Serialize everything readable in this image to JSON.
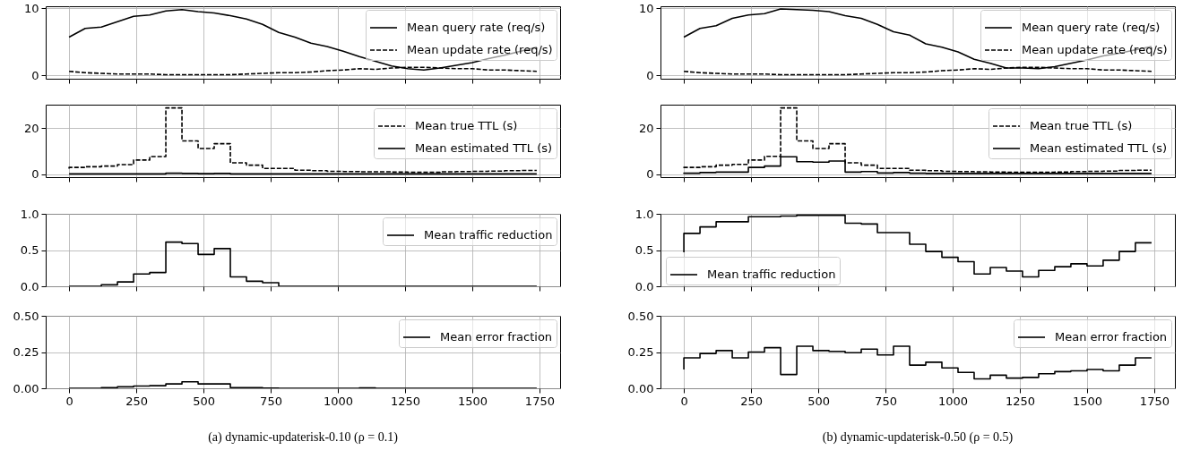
{
  "chart_data": [
    {
      "type": "line",
      "x": [
        0,
        60,
        120,
        180,
        240,
        300,
        360,
        420,
        480,
        540,
        600,
        660,
        720,
        780,
        840,
        900,
        960,
        1020,
        1080,
        1140,
        1200,
        1260,
        1320,
        1380,
        1440,
        1500,
        1560,
        1620,
        1680,
        1740
      ],
      "xlim": [
        -87,
        1827
      ],
      "xticks": [
        0,
        250,
        500,
        750,
        1000,
        1250,
        1500,
        1750
      ],
      "ylim": [
        -0.5,
        10.3
      ],
      "yticks": [
        0,
        10
      ],
      "grid": true,
      "legend": "top right",
      "tick_labels": "y",
      "series": [
        {
          "name": "Mean query rate (req/s)",
          "color": "#000000",
          "line_style": "solid",
          "values": [
            5.7,
            7.0,
            7.2,
            8.0,
            8.8,
            9.0,
            9.6,
            9.8,
            9.5,
            9.3,
            8.9,
            8.4,
            7.6,
            6.4,
            5.7,
            4.8,
            4.3,
            3.6,
            2.8,
            2.1,
            1.4,
            1.0,
            0.8,
            1.1,
            1.5,
            1.9,
            2.5,
            3.0,
            3.6,
            4.2
          ]
        },
        {
          "name": "Mean update rate (req/s)",
          "color": "#000000",
          "line_style": "dashed",
          "values": [
            0.6,
            0.4,
            0.3,
            0.2,
            0.2,
            0.2,
            0.1,
            0.1,
            0.1,
            0.1,
            0.1,
            0.2,
            0.3,
            0.4,
            0.4,
            0.5,
            0.7,
            0.8,
            1.0,
            0.9,
            1.1,
            1.2,
            1.2,
            1.1,
            1.0,
            1.0,
            0.8,
            0.8,
            0.7,
            0.6
          ]
        }
      ]
    },
    {
      "type": "step",
      "x": [
        0,
        60,
        120,
        180,
        240,
        300,
        360,
        420,
        480,
        540,
        600,
        660,
        720,
        780,
        840,
        900,
        960,
        1020,
        1080,
        1140,
        1200,
        1260,
        1320,
        1380,
        1440,
        1500,
        1560,
        1620,
        1680,
        1740
      ],
      "xlim": [
        -87,
        1827
      ],
      "xticks": [
        0,
        250,
        500,
        750,
        1000,
        1250,
        1500,
        1750
      ],
      "ylim": [
        -1.2,
        30.2
      ],
      "yticks": [
        0,
        20
      ],
      "grid": true,
      "legend": "top right",
      "tick_labels": "y",
      "series": [
        {
          "name": "Mean true TTL (s)",
          "color": "#000000",
          "line_style": "dashed",
          "values": [
            2.5,
            3.0,
            3.3,
            3.6,
            4.2,
            6.2,
            7.7,
            28.8,
            14.5,
            11.2,
            13.3,
            5.0,
            4.0,
            2.6,
            2.6,
            1.8,
            1.6,
            1.3,
            1.2,
            1.1,
            1.1,
            1.0,
            0.9,
            0.9,
            1.1,
            1.2,
            1.3,
            1.4,
            1.6,
            1.7
          ]
        },
        {
          "name": "Mean estimated TTL (s)",
          "color": "#000000",
          "line_style": "solid",
          "values": [
            0.2,
            0.2,
            0.2,
            0.2,
            0.2,
            0.2,
            0.2,
            0.5,
            0.4,
            0.3,
            0.4,
            0.2,
            0.2,
            0.2,
            0.2,
            0.2,
            0.2,
            0.2,
            0.2,
            0.2,
            0.2,
            0.2,
            0.2,
            0.2,
            0.2,
            0.2,
            0.2,
            0.2,
            0.2,
            0.2
          ]
        }
      ]
    },
    {
      "type": "step",
      "x": [
        0,
        60,
        120,
        180,
        240,
        300,
        360,
        420,
        480,
        540,
        600,
        660,
        720,
        780,
        840,
        900,
        960,
        1020,
        1080,
        1140,
        1200,
        1260,
        1320,
        1380,
        1440,
        1500,
        1560,
        1620,
        1680,
        1740
      ],
      "xlim": [
        -87,
        1827
      ],
      "xticks": [
        0,
        250,
        500,
        750,
        1000,
        1250,
        1500,
        1750
      ],
      "ylim": [
        0,
        1
      ],
      "yticks": [
        {
          "value": 0,
          "label": "0.0"
        },
        {
          "value": 0.5,
          "label": "0.5"
        },
        {
          "value": 1,
          "label": "1.0"
        }
      ],
      "grid": true,
      "legend": "top right",
      "tick_labels": "y",
      "series": [
        {
          "name": "Mean traffic reduction",
          "color": "#000000",
          "line_style": "solid",
          "values": [
            0,
            0,
            0,
            0.02,
            0.06,
            0.17,
            0.19,
            0.61,
            0.59,
            0.44,
            0.52,
            0.13,
            0.07,
            0.05,
            0,
            0,
            0,
            0,
            0,
            0,
            0,
            0,
            0,
            0,
            0,
            0,
            0,
            0,
            0,
            0
          ]
        }
      ]
    },
    {
      "type": "step",
      "x": [
        0,
        60,
        120,
        180,
        240,
        300,
        360,
        420,
        480,
        540,
        600,
        660,
        720,
        780,
        840,
        900,
        960,
        1020,
        1080,
        1140,
        1200,
        1260,
        1320,
        1380,
        1440,
        1500,
        1560,
        1620,
        1680,
        1740
      ],
      "xlim": [
        -87,
        1827
      ],
      "xticks": [
        0,
        250,
        500,
        750,
        1000,
        1250,
        1500,
        1750
      ],
      "ylim": [
        0,
        0.5
      ],
      "yticks": [
        {
          "value": 0,
          "label": "0.00"
        },
        {
          "value": 0.25,
          "label": "0.25"
        },
        {
          "value": 0.5,
          "label": "0.50"
        }
      ],
      "grid": true,
      "legend": "top right",
      "annotations": [
        "(a) dynamic-updaterisk-0.10 (ρ = 0.1)"
      ],
      "series": [
        {
          "name": "Mean error fraction",
          "color": "#000000",
          "line_style": "solid",
          "values": [
            0,
            0,
            0,
            0.005,
            0.01,
            0.015,
            0.018,
            0.03,
            0.045,
            0.03,
            0.03,
            0.005,
            0.005,
            0.002,
            0,
            0,
            0,
            0,
            0,
            0.003,
            0,
            0,
            0,
            0,
            0,
            0,
            0,
            0,
            0,
            0
          ]
        }
      ]
    },
    {
      "type": "line",
      "x": [
        0,
        60,
        120,
        180,
        240,
        300,
        360,
        420,
        480,
        540,
        600,
        660,
        720,
        780,
        840,
        900,
        960,
        1020,
        1080,
        1140,
        1200,
        1260,
        1320,
        1380,
        1440,
        1500,
        1560,
        1620,
        1680,
        1740
      ],
      "xlim": [
        -87,
        1827
      ],
      "xticks": [
        0,
        250,
        500,
        750,
        1000,
        1250,
        1500,
        1750
      ],
      "ylim": [
        -0.5,
        10.3
      ],
      "yticks": [
        0,
        10
      ],
      "grid": true,
      "legend": "top right",
      "tick_labels": "y",
      "series": [
        {
          "name": "Mean query rate (req/s)",
          "color": "#000000",
          "line_style": "solid",
          "values": [
            5.7,
            7.0,
            7.4,
            8.5,
            9.0,
            9.2,
            9.9,
            9.8,
            9.7,
            9.5,
            8.9,
            8.5,
            7.6,
            6.5,
            6.0,
            4.7,
            4.2,
            3.5,
            2.4,
            1.8,
            1.1,
            1.1,
            1.0,
            1.3,
            1.8,
            2.3,
            2.9,
            3.3,
            3.8,
            4.3
          ]
        },
        {
          "name": "Mean update rate (req/s)",
          "color": "#000000",
          "line_style": "dashed",
          "values": [
            0.6,
            0.4,
            0.3,
            0.2,
            0.2,
            0.2,
            0.1,
            0.1,
            0.1,
            0.1,
            0.1,
            0.2,
            0.3,
            0.4,
            0.4,
            0.5,
            0.7,
            0.8,
            1.0,
            0.9,
            1.1,
            1.2,
            1.2,
            1.1,
            1.0,
            1.0,
            0.8,
            0.8,
            0.7,
            0.6
          ]
        }
      ]
    },
    {
      "type": "step",
      "x": [
        0,
        60,
        120,
        180,
        240,
        300,
        360,
        420,
        480,
        540,
        600,
        660,
        720,
        780,
        840,
        900,
        960,
        1020,
        1080,
        1140,
        1200,
        1260,
        1320,
        1380,
        1440,
        1500,
        1560,
        1620,
        1680,
        1740
      ],
      "xlim": [
        -87,
        1827
      ],
      "xticks": [
        0,
        250,
        500,
        750,
        1000,
        1250,
        1500,
        1750
      ],
      "ylim": [
        -1.2,
        30.2
      ],
      "yticks": [
        0,
        20
      ],
      "grid": true,
      "legend": "top right",
      "tick_labels": "y",
      "series": [
        {
          "name": "Mean true TTL (s)",
          "color": "#000000",
          "line_style": "dashed",
          "values": [
            2.8,
            3.0,
            3.3,
            4.0,
            4.3,
            6.2,
            7.8,
            28.8,
            14.5,
            11.2,
            13.3,
            5.0,
            4.0,
            2.6,
            2.6,
            1.8,
            1.6,
            1.3,
            1.2,
            1.1,
            1.0,
            0.9,
            0.9,
            0.9,
            1.0,
            1.2,
            1.3,
            1.4,
            1.7,
            1.8
          ]
        },
        {
          "name": "Mean estimated TTL (s)",
          "color": "#000000",
          "line_style": "solid",
          "values": [
            0.3,
            0.5,
            0.8,
            1.0,
            1.0,
            3.0,
            3.6,
            7.6,
            5.5,
            5.3,
            5.8,
            1.0,
            1.2,
            0.6,
            0.8,
            0.5,
            0.4,
            0.4,
            0.4,
            0.4,
            0.4,
            0.4,
            0.4,
            0.4,
            0.4,
            0.4,
            0.4,
            0.4,
            0.4,
            0.4
          ]
        }
      ]
    },
    {
      "type": "step",
      "x": [
        0,
        60,
        120,
        180,
        240,
        300,
        360,
        420,
        480,
        540,
        600,
        660,
        720,
        780,
        840,
        900,
        960,
        1020,
        1080,
        1140,
        1200,
        1260,
        1320,
        1380,
        1440,
        1500,
        1560,
        1620,
        1680,
        1740
      ],
      "xlim": [
        -87,
        1827
      ],
      "xticks": [
        0,
        250,
        500,
        750,
        1000,
        1250,
        1500,
        1750
      ],
      "ylim": [
        0,
        1
      ],
      "yticks": [
        {
          "value": 0,
          "label": "0.0"
        },
        {
          "value": 0.5,
          "label": "0.5"
        },
        {
          "value": 1,
          "label": "1.0"
        }
      ],
      "grid": true,
      "legend": "left",
      "tick_labels": "y",
      "series": [
        {
          "name": "Mean traffic reduction",
          "color": "#000000",
          "line_style": "solid",
          "values": [
            0.47,
            0.73,
            0.82,
            0.89,
            0.89,
            0.96,
            0.96,
            0.97,
            0.98,
            0.98,
            0.98,
            0.87,
            0.86,
            0.74,
            0.74,
            0.58,
            0.48,
            0.4,
            0.34,
            0.17,
            0.26,
            0.21,
            0.13,
            0.22,
            0.27,
            0.31,
            0.28,
            0.36,
            0.48,
            0.6
          ]
        }
      ]
    },
    {
      "type": "step",
      "x": [
        0,
        60,
        120,
        180,
        240,
        300,
        360,
        420,
        480,
        540,
        600,
        660,
        720,
        780,
        840,
        900,
        960,
        1020,
        1080,
        1140,
        1200,
        1260,
        1320,
        1380,
        1440,
        1500,
        1560,
        1620,
        1680,
        1740
      ],
      "xlim": [
        -87,
        1827
      ],
      "xticks": [
        0,
        250,
        500,
        750,
        1000,
        1250,
        1500,
        1750
      ],
      "ylim": [
        0,
        0.5
      ],
      "yticks": [
        {
          "value": 0,
          "label": "0.00"
        },
        {
          "value": 0.25,
          "label": "0.25"
        },
        {
          "value": 0.5,
          "label": "0.50"
        }
      ],
      "grid": true,
      "legend": "top right",
      "annotations": [
        "(b) dynamic-updaterisk-0.50 (ρ = 0.5)"
      ],
      "series": [
        {
          "name": "Mean error fraction",
          "color": "#000000",
          "line_style": "solid",
          "values": [
            0.13,
            0.21,
            0.24,
            0.26,
            0.21,
            0.25,
            0.28,
            0.095,
            0.29,
            0.26,
            0.255,
            0.245,
            0.27,
            0.23,
            0.29,
            0.16,
            0.18,
            0.14,
            0.11,
            0.065,
            0.09,
            0.07,
            0.075,
            0.1,
            0.115,
            0.12,
            0.13,
            0.12,
            0.16,
            0.21
          ]
        }
      ]
    }
  ]
}
